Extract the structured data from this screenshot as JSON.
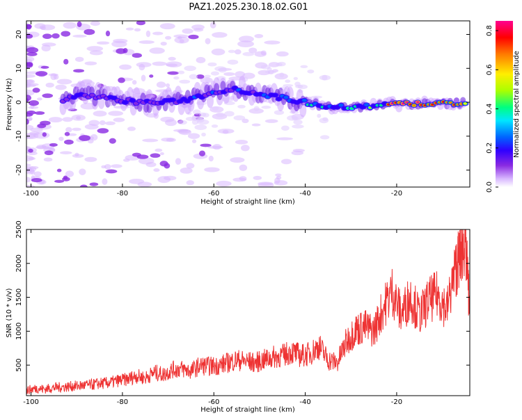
{
  "title": "PAZ1.2025.230.18.02.G01",
  "chart_data": [
    {
      "type": "heatmap",
      "xlabel": "Height of straight line (km)",
      "ylabel": "Frequency (Hz)",
      "xlim": [
        -101,
        -4
      ],
      "ylim": [
        -25,
        24
      ],
      "xticks": [
        -100,
        -80,
        -60,
        -40,
        -20
      ],
      "yticks": [
        -20,
        -10,
        0,
        10,
        20
      ],
      "colorbar": {
        "label": "Normalized spectral amplitude",
        "range": [
          0.0,
          0.85
        ],
        "ticks": [
          0.0,
          0.2,
          0.4,
          0.6,
          0.8
        ],
        "colormap": [
          "#ffffff",
          "#d8b8ff",
          "#8a2be2",
          "#3000ff",
          "#0064ff",
          "#00e6ff",
          "#00ff80",
          "#aaff00",
          "#ffee00",
          "#ff7a00",
          "#ff0000",
          "#ff0090"
        ]
      },
      "ridge": [
        {
          "x": -93,
          "y": 0.0
        },
        {
          "x": -90,
          "y": 2.5
        },
        {
          "x": -85,
          "y": 1.5
        },
        {
          "x": -80,
          "y": 0.5
        },
        {
          "x": -75,
          "y": 0.0
        },
        {
          "x": -70,
          "y": 0.0
        },
        {
          "x": -65,
          "y": 1.0
        },
        {
          "x": -60,
          "y": 3.0
        },
        {
          "x": -56,
          "y": 4.0
        },
        {
          "x": -52,
          "y": 3.0
        },
        {
          "x": -48,
          "y": 2.0
        },
        {
          "x": -44,
          "y": 1.0
        },
        {
          "x": -40,
          "y": 0.0
        },
        {
          "x": -36,
          "y": -1.0
        },
        {
          "x": -30,
          "y": -1.5
        },
        {
          "x": -25,
          "y": -1.0
        },
        {
          "x": -20,
          "y": -0.5
        },
        {
          "x": -15,
          "y": -0.5
        },
        {
          "x": -10,
          "y": -0.5
        },
        {
          "x": -4,
          "y": 0.0
        }
      ]
    },
    {
      "type": "line",
      "xlabel": "Height of straight line (km)",
      "ylabel": "SNR (10 * v/v)",
      "xlim": [
        -101,
        -4
      ],
      "ylim": [
        50,
        2500
      ],
      "xticks": [
        -100,
        -80,
        -60,
        -40,
        -20
      ],
      "yticks": [
        500,
        1000,
        1500,
        2000,
        2500
      ],
      "color": "#ee3333",
      "series": [
        {
          "name": "",
          "x": [
            -101,
            -99,
            -97,
            -95,
            -93,
            -91,
            -89,
            -87,
            -85,
            -83,
            -81,
            -79,
            -77,
            -75,
            -73,
            -71,
            -69,
            -67,
            -65,
            -63,
            -61,
            -59,
            -57,
            -55,
            -53,
            -51,
            -49,
            -47,
            -45,
            -43,
            -41,
            -39,
            -37,
            -35,
            -33,
            -31,
            -29,
            -27,
            -25,
            -23,
            -21,
            -19,
            -17,
            -15,
            -13,
            -11,
            -9,
            -7,
            -6,
            -5,
            -4
          ],
          "y": [
            120,
            150,
            140,
            160,
            170,
            180,
            190,
            200,
            220,
            230,
            260,
            280,
            330,
            300,
            380,
            350,
            420,
            430,
            400,
            480,
            470,
            480,
            520,
            560,
            540,
            520,
            560,
            600,
            620,
            680,
            620,
            650,
            760,
            560,
            520,
            820,
            1000,
            1040,
            980,
            1300,
            1560,
            1220,
            1480,
            1200,
            1420,
            1500,
            1300,
            1900,
            2100,
            2300,
            1250
          ]
        }
      ]
    }
  ]
}
